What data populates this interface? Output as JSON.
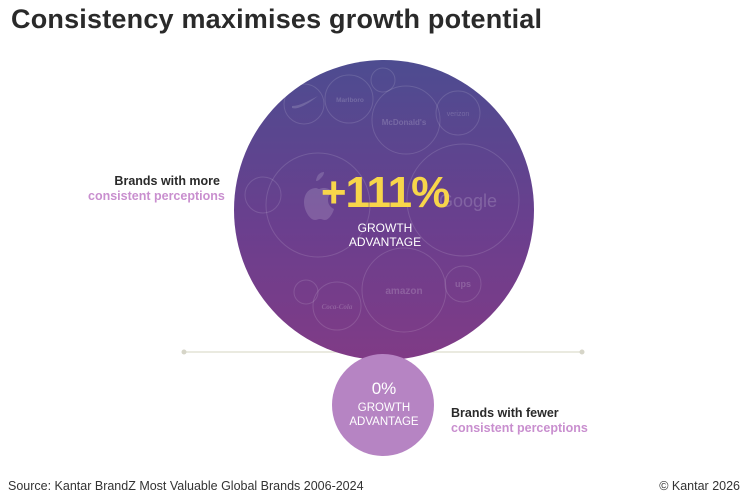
{
  "title": "Consistency maximises growth potential",
  "labels": {
    "more_line1": "Brands with more",
    "more_line2": "consistent perceptions",
    "fewer_line1": "Brands with fewer",
    "fewer_line2": "consistent perceptions"
  },
  "chart_data": {
    "type": "bubble",
    "title": "Consistency maximises growth potential",
    "series": [
      {
        "name": "Brands with more consistent perceptions",
        "value_label": "+111%",
        "value": 111,
        "caption": "GROWTH ADVANTAGE",
        "color": "#5a3f8f"
      },
      {
        "name": "Brands with fewer consistent perceptions",
        "value_label": "0%",
        "value": 0,
        "caption": "GROWTH ADVANTAGE",
        "color": "#b57fc2"
      }
    ],
    "big_caption_line1": "GROWTH",
    "big_caption_line2": "ADVANTAGE",
    "small_caption_line1": "GROWTH",
    "small_caption_line2": "ADVANTAGE",
    "brand_logos": [
      "Nike",
      "Marlboro",
      "McDonald's",
      "Verizon",
      "Apple",
      "Google",
      "Coca-Cola",
      "Amazon",
      "UPS"
    ]
  },
  "brands": {
    "marlboro": "Marlboro",
    "mcdonalds": "McDonald's",
    "verizon": "verizon",
    "google": "Google",
    "amazon": "amazon",
    "ups": "ups",
    "cocacola": "Coca-Cola"
  },
  "colors": {
    "big_top": "#4d4a8f",
    "big_bottom": "#7d3a86",
    "small": "#b684c3",
    "accent_value": "#f7d64a",
    "accent_label": "#c98fcf",
    "divider": "#e4e3d6"
  },
  "footer": {
    "source": "Source: Kantar BrandZ Most Valuable Global Brands 2006-2024",
    "copyright": "© Kantar 2026"
  }
}
